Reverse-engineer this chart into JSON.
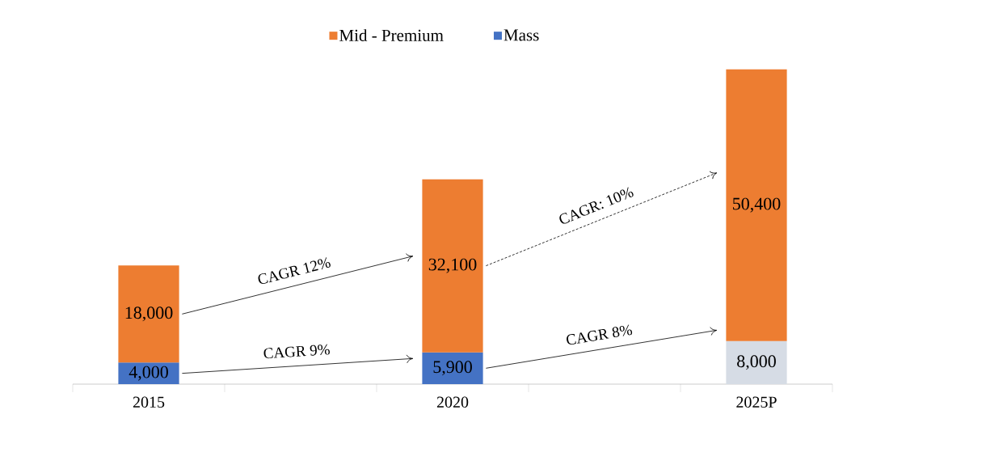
{
  "chart_data": {
    "type": "bar",
    "stacked": true,
    "legend": "top",
    "categories": [
      "2015",
      "2020",
      "2025P"
    ],
    "series": [
      {
        "name": "Mass",
        "color": "#4472c4",
        "colors": [
          "#4472c4",
          "#4472c4",
          "#d6dce5"
        ],
        "values": [
          4000,
          5900,
          8000
        ],
        "value_labels": [
          "4,000",
          "5,900",
          "8,000"
        ]
      },
      {
        "name": "Mid - Premium",
        "color": "#ed7d31",
        "values": [
          18000,
          32100,
          50400
        ],
        "value_labels": [
          "18,000",
          "32,100",
          "50,400"
        ]
      }
    ],
    "annotations": [
      "CAGR 12%",
      "CAGR 9%",
      "CAGR: 10%",
      "CAGR 8%"
    ]
  }
}
